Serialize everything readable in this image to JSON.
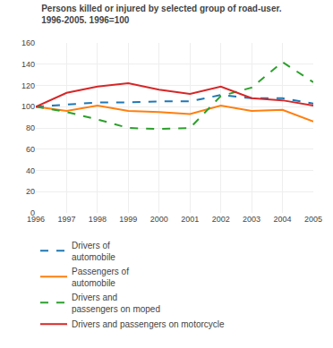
{
  "chart_data": {
    "type": "line",
    "title": "Persons killed or injured by selected group of road-user.",
    "subtitle": "1996-2005. 1996=100",
    "x": [
      1996,
      1997,
      1998,
      1999,
      2000,
      2001,
      2002,
      2003,
      2004,
      2005
    ],
    "series": [
      {
        "name": "Drivers of\nautomobile",
        "line_style": "dashed",
        "values": [
          100,
          102,
          104,
          104,
          105,
          105,
          111,
          108,
          108,
          103
        ]
      },
      {
        "name": "Passengers of\nautomobile",
        "line_style": "solid",
        "values": [
          100,
          96,
          101,
          96,
          95,
          93,
          101,
          96,
          97,
          86
        ]
      },
      {
        "name": "Drivers and\npassengers on moped",
        "line_style": "dashed",
        "values": [
          100,
          95,
          88,
          80,
          79,
          80,
          110,
          118,
          142,
          123
        ]
      },
      {
        "name": "Drivers and passengers on motorcycle",
        "line_style": "solid",
        "values": [
          100,
          113,
          119,
          122,
          116,
          112,
          119,
          108,
          106,
          101
        ]
      }
    ],
    "xlim": [
      1996,
      2005
    ],
    "xticks": [
      1996,
      1997,
      1998,
      1999,
      2000,
      2001,
      2002,
      2003,
      2004,
      2005
    ],
    "ylim": [
      0,
      160
    ],
    "yticks": [
      0,
      20,
      40,
      60,
      80,
      100,
      120,
      140,
      160
    ],
    "grid": true,
    "legend": "bottom"
  }
}
